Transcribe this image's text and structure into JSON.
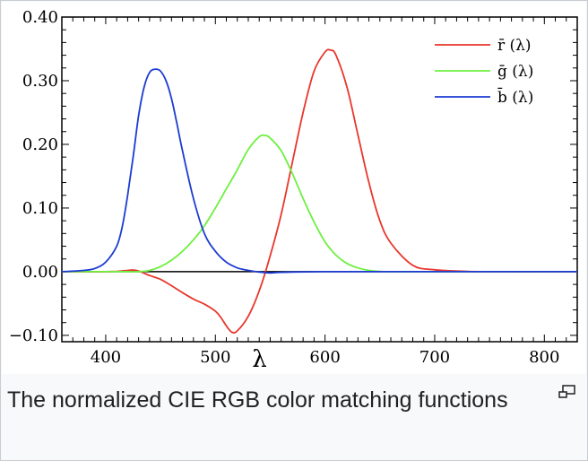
{
  "caption": "The normalized CIE RGB color matching functions",
  "icons": {
    "enlarge": "enlarge-icon"
  },
  "chart_data": {
    "type": "line",
    "title": "",
    "xlabel": "λ",
    "ylabel": "",
    "xlim": [
      360,
      830
    ],
    "ylim": [
      -0.11,
      0.4
    ],
    "x_ticks": [
      400,
      500,
      600,
      700,
      800
    ],
    "x_tick_labels": [
      "400",
      "500",
      "600",
      "700",
      "800"
    ],
    "y_ticks": [
      -0.1,
      0.0,
      0.1,
      0.2,
      0.3,
      0.4
    ],
    "y_tick_labels": [
      "−0.10",
      "0.00",
      "0.10",
      "0.20",
      "0.30",
      "0.40"
    ],
    "legend_position": "top-right",
    "zero_line": true,
    "series": [
      {
        "name": "r̄ (λ)",
        "color": "#e8372c",
        "x": [
          360,
          380,
          400,
          410,
          420,
          425,
          430,
          440,
          450,
          460,
          470,
          480,
          490,
          500,
          505,
          510,
          515,
          520,
          530,
          540,
          550,
          560,
          570,
          580,
          590,
          600,
          605,
          610,
          620,
          630,
          640,
          650,
          660,
          680,
          700,
          730,
          760,
          800,
          830
        ],
        "y": [
          0,
          0,
          0,
          0.0005,
          0.002,
          0.0025,
          0.001,
          -0.006,
          -0.012,
          -0.022,
          -0.033,
          -0.043,
          -0.051,
          -0.062,
          -0.072,
          -0.085,
          -0.095,
          -0.093,
          -0.07,
          -0.03,
          0.025,
          0.09,
          0.17,
          0.25,
          0.315,
          0.345,
          0.348,
          0.34,
          0.29,
          0.215,
          0.14,
          0.08,
          0.045,
          0.01,
          0.003,
          0.0005,
          0,
          0,
          0
        ]
      },
      {
        "name": "ḡ (λ)",
        "color": "#6ef040",
        "x": [
          360,
          400,
          420,
          430,
          440,
          450,
          460,
          470,
          480,
          490,
          500,
          510,
          520,
          530,
          540,
          545,
          550,
          560,
          570,
          580,
          590,
          600,
          610,
          620,
          630,
          640,
          650,
          660,
          680,
          700,
          760,
          830
        ],
        "y": [
          0,
          0,
          0,
          0,
          0.002,
          0.008,
          0.018,
          0.032,
          0.05,
          0.072,
          0.1,
          0.13,
          0.16,
          0.192,
          0.212,
          0.214,
          0.21,
          0.19,
          0.155,
          0.115,
          0.078,
          0.047,
          0.026,
          0.013,
          0.006,
          0.002,
          0.0005,
          0,
          0,
          0,
          0,
          0
        ]
      },
      {
        "name": "b̄ (λ)",
        "color": "#1c3cd2",
        "x": [
          360,
          380,
          390,
          400,
          410,
          415,
          420,
          425,
          430,
          435,
          440,
          445,
          450,
          455,
          460,
          465,
          470,
          480,
          490,
          500,
          510,
          520,
          530,
          540,
          550,
          560,
          600,
          700,
          830
        ],
        "y": [
          0,
          0.002,
          0.005,
          0.015,
          0.04,
          0.07,
          0.12,
          0.18,
          0.245,
          0.29,
          0.313,
          0.318,
          0.315,
          0.3,
          0.272,
          0.232,
          0.19,
          0.115,
          0.06,
          0.032,
          0.015,
          0.006,
          0.002,
          -0.0005,
          -0.002,
          -0.001,
          0,
          0,
          0
        ]
      }
    ]
  }
}
